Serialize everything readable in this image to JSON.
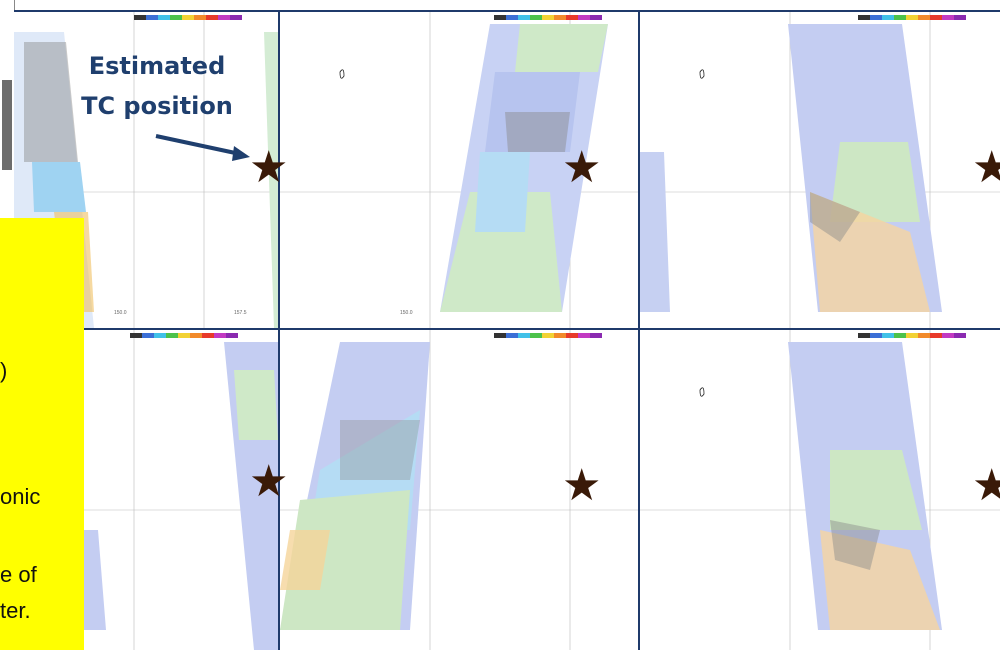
{
  "annotation": {
    "line1": "Estimated",
    "line2": "TC position"
  },
  "yellow_box": {
    "lines": [
      ")",
      "onic",
      "e of",
      "ter."
    ]
  },
  "marker": {
    "star": "★",
    "color": "#3a1a08"
  },
  "colors": {
    "frame": "#1f3a6b",
    "annotation_text": "#1f3f6e",
    "highlight": "#ffff00",
    "wind_blue": "#4a5fd0",
    "wind_light_blue": "#8fc9ef",
    "wind_green": "#5fc04a",
    "wind_black": "#202020",
    "wind_orange": "#f0a030"
  },
  "panels": [
    {
      "id": "top-left",
      "swath": "left"
    },
    {
      "id": "top-middle",
      "swath": "center-right"
    },
    {
      "id": "top-right",
      "swath": "center"
    },
    {
      "id": "bottom-left",
      "swath": "right"
    },
    {
      "id": "bottom-middle",
      "swath": "left"
    },
    {
      "id": "bottom-right",
      "swath": "center"
    }
  ]
}
